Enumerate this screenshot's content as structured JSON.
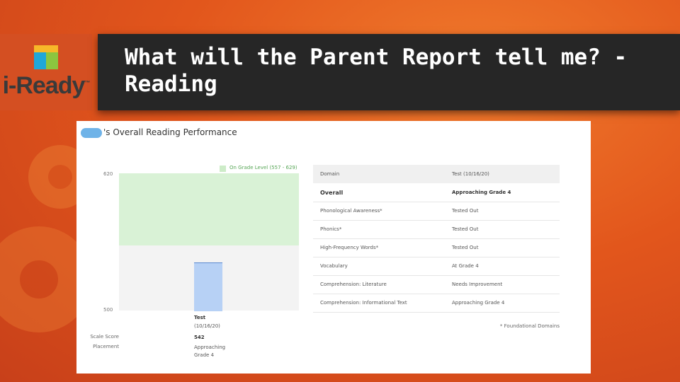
{
  "slide": {
    "title_line1": "What will the Parent Report tell me? -",
    "title_line2": "Reading",
    "logo_text": "i-Ready",
    "logo_tm": "™",
    "colors": {
      "background": "#e2561c",
      "title_bar": "#262626",
      "on_grade_band": "#d9f2d6",
      "bar_fill": "#b7d1f5"
    }
  },
  "report": {
    "heading": "'s Overall Reading Performance",
    "chart": {
      "legend_label": "On Grade Level (557 - 629)",
      "y_max_label": "620",
      "y_min_label": "500",
      "ylim": [
        500,
        620
      ],
      "on_grade_from": 557,
      "bar_value": 542,
      "test_label_line1": "Test",
      "test_label_line2": "(10/16/20)",
      "scale_score_label": "Scale Score",
      "scale_score_value": "542",
      "placement_label": "Placement",
      "placement_value_line1": "Approaching",
      "placement_value_line2": "Grade 4"
    },
    "table": {
      "headers": [
        "Domain",
        "Test (10/16/20)"
      ],
      "rows": [
        [
          "Overall",
          "Approaching Grade 4"
        ],
        [
          "Phonological Awareness*",
          "Tested Out"
        ],
        [
          "Phonics*",
          "Tested Out"
        ],
        [
          "High-Frequency Words*",
          "Tested Out"
        ],
        [
          "Vocabulary",
          "At Grade 4"
        ],
        [
          "Comprehension: Literature",
          "Needs Improvement"
        ],
        [
          "Comprehension: Informational Text",
          "Approaching Grade 4"
        ]
      ],
      "footnote": "* Foundational Domains"
    }
  }
}
